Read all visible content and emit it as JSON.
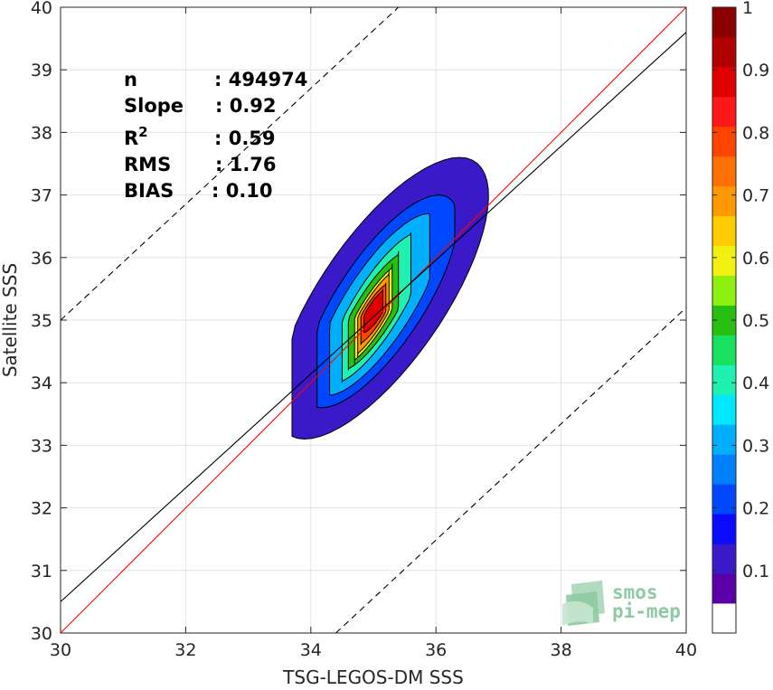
{
  "chart_data": {
    "type": "heatmap",
    "subtype": "filled-contour density scatter",
    "xlabel": "TSG-LEGOS-DM SSS",
    "ylabel": "Satellite SSS",
    "xlim": [
      30,
      40
    ],
    "ylim": [
      30,
      40
    ],
    "x_ticks": [
      "30",
      "32",
      "34",
      "36",
      "38",
      "40"
    ],
    "y_ticks": [
      "30",
      "31",
      "32",
      "33",
      "34",
      "35",
      "36",
      "37",
      "38",
      "39",
      "40"
    ],
    "grid": true,
    "density_peak": {
      "x": 35.0,
      "y": 35.1
    },
    "contour_extents": [
      {
        "level": 0.05,
        "x_range": [
          33.7,
          37.4
        ],
        "y_range": [
          33.1,
          37.6
        ]
      },
      {
        "level": 0.15,
        "x_range": [
          34.1,
          36.3
        ],
        "y_range": [
          33.6,
          37.0
        ]
      },
      {
        "level": 0.25,
        "x_range": [
          34.3,
          35.9
        ],
        "y_range": [
          33.8,
          36.7
        ]
      },
      {
        "level": 0.35,
        "x_range": [
          34.5,
          35.6
        ],
        "y_range": [
          34.0,
          36.4
        ]
      },
      {
        "level": 0.45,
        "x_range": [
          34.6,
          35.4
        ],
        "y_range": [
          34.2,
          36.1
        ]
      },
      {
        "level": 0.55,
        "x_range": [
          34.7,
          35.3
        ],
        "y_range": [
          34.3,
          35.9
        ]
      },
      {
        "level": 0.65,
        "x_range": [
          34.75,
          35.25
        ],
        "y_range": [
          34.4,
          35.8
        ]
      },
      {
        "level": 0.75,
        "x_range": [
          34.8,
          35.2
        ],
        "y_range": [
          34.6,
          35.6
        ]
      },
      {
        "level": 0.85,
        "x_range": [
          34.85,
          35.15
        ],
        "y_range": [
          34.8,
          35.5
        ]
      }
    ],
    "lines": [
      {
        "name": "identity",
        "color": "#ff0000",
        "dash": "solid",
        "from": [
          30,
          30
        ],
        "to": [
          40,
          40
        ]
      },
      {
        "name": "regression",
        "color": "#000000",
        "dash": "solid",
        "from": [
          30,
          30.5
        ],
        "to": [
          40,
          39.6
        ]
      },
      {
        "name": "upper-bound",
        "color": "#000000",
        "dash": "dashed",
        "from": [
          30,
          35
        ],
        "to": [
          35.4,
          40
        ]
      },
      {
        "name": "lower-bound",
        "color": "#000000",
        "dash": "dashed",
        "from": [
          34.4,
          30
        ],
        "to": [
          40,
          35.2
        ]
      }
    ],
    "stats": [
      {
        "label": "n",
        "value": ": 494974"
      },
      {
        "label": "Slope",
        "value": ": 0.92"
      },
      {
        "label": "R",
        "superscript": "2",
        "value": ": 0.59"
      },
      {
        "label": "RMS",
        "value": ": 1.76"
      },
      {
        "label": "BIAS",
        "value": ": 0.10"
      }
    ],
    "colorbar": {
      "range": [
        0,
        1
      ],
      "ticks": [
        "0.1",
        "0.2",
        "0.3",
        "0.4",
        "0.5",
        "0.6",
        "0.7",
        "0.8",
        "0.9",
        "1"
      ],
      "colors": [
        "#ffffff",
        "#5a00a8",
        "#3a19c8",
        "#0a0aff",
        "#0048ff",
        "#0080ff",
        "#00b0ff",
        "#00e8ff",
        "#20f0b0",
        "#18e060",
        "#28c010",
        "#8ef010",
        "#f2f010",
        "#ffcc00",
        "#ff9900",
        "#ff7000",
        "#ff4400",
        "#ff1818",
        "#e00000",
        "#b00000",
        "#8b0000"
      ]
    }
  },
  "logo": {
    "line1": "smos",
    "line2": "pi-mep"
  }
}
